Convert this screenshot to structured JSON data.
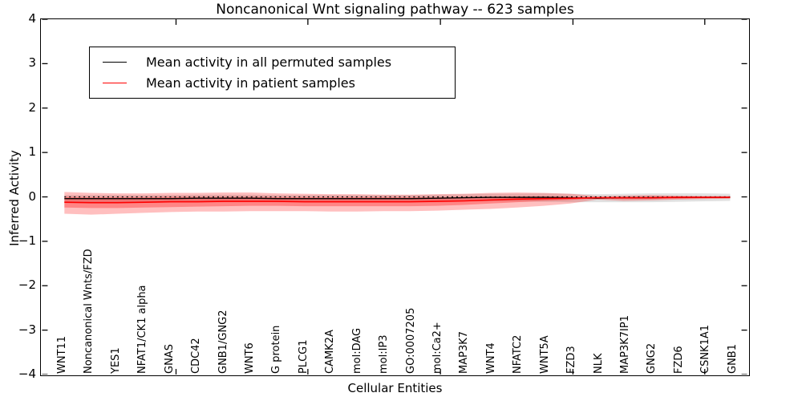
{
  "figure": {
    "title": "Noncanonical Wnt signaling pathway -- 623 samples",
    "xlabel": "Cellular Entities",
    "ylabel": "Inferred Activity"
  },
  "legend": {
    "items": [
      {
        "label": "Mean activity in all permuted samples",
        "color": "#000000"
      },
      {
        "label": "Mean activity in patient samples",
        "color": "#ff0000"
      }
    ]
  },
  "chart_data": {
    "type": "line",
    "title": "Noncanonical Wnt signaling pathway -- 623 samples",
    "xlabel": "Cellular Entities",
    "ylabel": "Inferred Activity",
    "ylim": [
      -4,
      4
    ],
    "ytick_labels": [
      "4",
      "3",
      "2",
      "1",
      "0",
      "−1",
      "−2",
      "−3",
      "−4"
    ],
    "grid": false,
    "legend_position": "upper left",
    "categories": [
      "WNT11",
      "Noncanonical Wnts/FZD",
      "YES1",
      "NFAT1/CK1 alpha",
      "GNAS",
      "CDC42",
      "GNB1/GNG2",
      "WNT6",
      "G protein",
      "PLCG1",
      "CAMK2A",
      "mol:DAG",
      "mol:IP3",
      "GO:0007205",
      "mol:Ca2+",
      "MAP3K7",
      "WNT4",
      "NFATC2",
      "WNT5A",
      "FZD3",
      "NLK",
      "MAP3K7IP1",
      "GNG2",
      "FZD6",
      "CSNK1A1",
      "GNB1"
    ],
    "series": [
      {
        "name": "Mean activity in all permuted samples",
        "color": "#000000",
        "values": [
          -0.04,
          -0.04,
          -0.04,
          -0.04,
          -0.04,
          -0.03,
          -0.03,
          -0.03,
          -0.04,
          -0.04,
          -0.04,
          -0.04,
          -0.04,
          -0.04,
          -0.03,
          -0.02,
          -0.01,
          -0.01,
          -0.01,
          -0.02,
          -0.03,
          -0.02,
          -0.02,
          -0.01,
          -0.01,
          -0.01
        ]
      },
      {
        "name": "Mean activity in patient samples",
        "color": "#ff0000",
        "values": [
          -0.12,
          -0.13,
          -0.13,
          -0.12,
          -0.11,
          -0.11,
          -0.1,
          -0.1,
          -0.1,
          -0.11,
          -0.11,
          -0.11,
          -0.11,
          -0.11,
          -0.1,
          -0.09,
          -0.07,
          -0.05,
          -0.04,
          -0.03,
          -0.02,
          -0.02,
          -0.02,
          -0.01,
          -0.01,
          -0.01
        ]
      }
    ],
    "bands": [
      {
        "name": "permuted-sample-range",
        "color": "#aaaaaa",
        "opacity": 0.35,
        "hi": [
          0.04,
          0.04,
          0.04,
          0.04,
          0.04,
          0.05,
          0.05,
          0.05,
          0.04,
          0.04,
          0.04,
          0.04,
          0.04,
          0.04,
          0.05,
          0.06,
          0.07,
          0.07,
          0.08,
          0.07,
          0.06,
          0.07,
          0.08,
          0.08,
          0.08,
          0.07
        ],
        "lo": [
          -0.12,
          -0.12,
          -0.12,
          -0.12,
          -0.12,
          -0.11,
          -0.11,
          -0.11,
          -0.12,
          -0.12,
          -0.12,
          -0.12,
          -0.12,
          -0.12,
          -0.11,
          -0.1,
          -0.1,
          -0.1,
          -0.11,
          -0.12,
          -0.12,
          -0.12,
          -0.12,
          -0.11,
          -0.1,
          -0.09
        ]
      },
      {
        "name": "patient-sample-range-outer",
        "color": "#ff0000",
        "opacity": 0.25,
        "hi": [
          0.11,
          0.09,
          0.08,
          0.08,
          0.09,
          0.09,
          0.1,
          0.1,
          0.08,
          0.07,
          0.06,
          0.06,
          0.05,
          0.05,
          0.06,
          0.07,
          0.09,
          0.1,
          0.09,
          0.07,
          0.02,
          0.03,
          0.04,
          0.03,
          0.02,
          0.02
        ],
        "lo": [
          -0.38,
          -0.4,
          -0.38,
          -0.36,
          -0.34,
          -0.33,
          -0.33,
          -0.32,
          -0.32,
          -0.32,
          -0.33,
          -0.33,
          -0.32,
          -0.32,
          -0.31,
          -0.29,
          -0.27,
          -0.24,
          -0.2,
          -0.15,
          -0.06,
          -0.09,
          -0.08,
          -0.06,
          -0.05,
          -0.04
        ]
      },
      {
        "name": "patient-sample-range-inner",
        "color": "#ff0000",
        "opacity": 0.3,
        "hi": [
          0.0,
          -0.01,
          -0.01,
          -0.01,
          0.0,
          0.0,
          0.0,
          0.0,
          -0.01,
          -0.01,
          -0.01,
          -0.01,
          -0.01,
          -0.01,
          -0.01,
          0.0,
          0.01,
          0.01,
          0.01,
          0.0,
          -0.01,
          0.0,
          0.01,
          0.01,
          0.0,
          0.0
        ],
        "lo": [
          -0.24,
          -0.25,
          -0.25,
          -0.24,
          -0.23,
          -0.22,
          -0.21,
          -0.2,
          -0.2,
          -0.21,
          -0.21,
          -0.21,
          -0.21,
          -0.21,
          -0.2,
          -0.18,
          -0.15,
          -0.12,
          -0.09,
          -0.07,
          -0.03,
          -0.05,
          -0.05,
          -0.04,
          -0.03,
          -0.02
        ]
      }
    ],
    "zero_line": {
      "style": "dotted",
      "color": "#000000"
    }
  }
}
